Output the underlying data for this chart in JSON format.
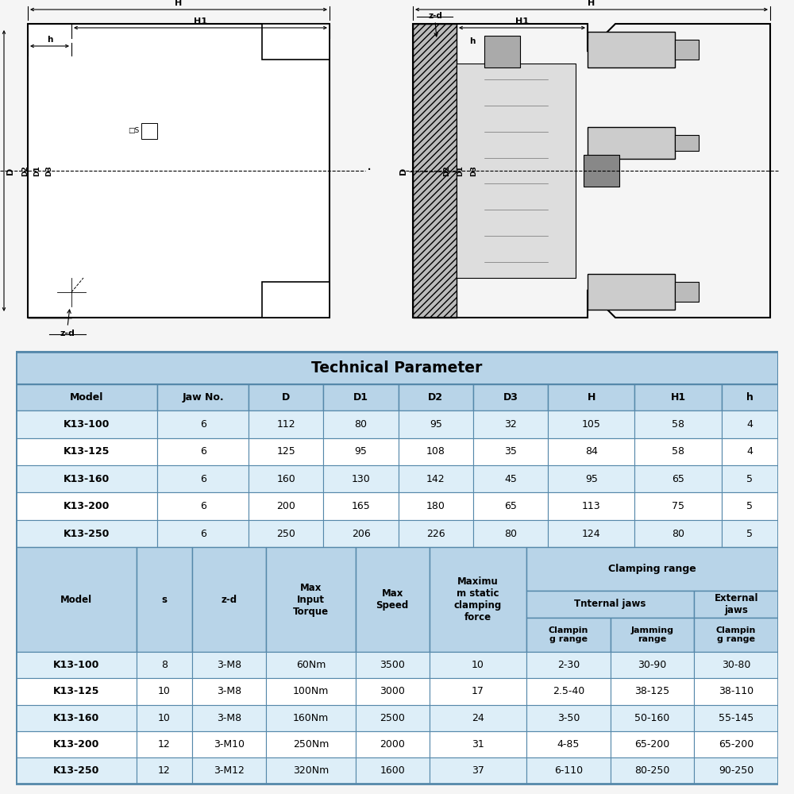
{
  "title": "Technical Parameter",
  "table1_headers": [
    "Model",
    "Jaw No.",
    "D",
    "D1",
    "D2",
    "D3",
    "H",
    "H1",
    "h"
  ],
  "table1_rows": [
    [
      "K13-100",
      "6",
      "112",
      "80",
      "95",
      "32",
      "105",
      "58",
      "4"
    ],
    [
      "K13-125",
      "6",
      "125",
      "95",
      "108",
      "35",
      "84",
      "58",
      "4"
    ],
    [
      "K13-160",
      "6",
      "160",
      "130",
      "142",
      "45",
      "95",
      "65",
      "5"
    ],
    [
      "K13-200",
      "6",
      "200",
      "165",
      "180",
      "65",
      "113",
      "75",
      "5"
    ],
    [
      "K13-250",
      "6",
      "250",
      "206",
      "226",
      "80",
      "124",
      "80",
      "5"
    ]
  ],
  "table2_rows": [
    [
      "K13-100",
      "8",
      "3-M8",
      "60Nm",
      "3500",
      "10",
      "2-30",
      "30-90",
      "30-80"
    ],
    [
      "K13-125",
      "10",
      "3-M8",
      "100Nm",
      "3000",
      "17",
      "2.5-40",
      "38-125",
      "38-110"
    ],
    [
      "K13-160",
      "10",
      "3-M8",
      "160Nm",
      "2500",
      "24",
      "3-50",
      "50-160",
      "55-145"
    ],
    [
      "K13-200",
      "12",
      "3-M10",
      "250Nm",
      "2000",
      "31",
      "4-85",
      "65-200",
      "65-200"
    ],
    [
      "K13-250",
      "12",
      "3-M12",
      "320Nm",
      "1600",
      "37",
      "6-110",
      "80-250",
      "90-250"
    ]
  ],
  "header_bg": "#b8d4e8",
  "row_bg_alt": "#ddeef8",
  "row_bg_white": "#ffffff",
  "border_color": "#5588aa",
  "fig_bg": "#f5f5f5",
  "draw_bg": "#f8f8f8"
}
